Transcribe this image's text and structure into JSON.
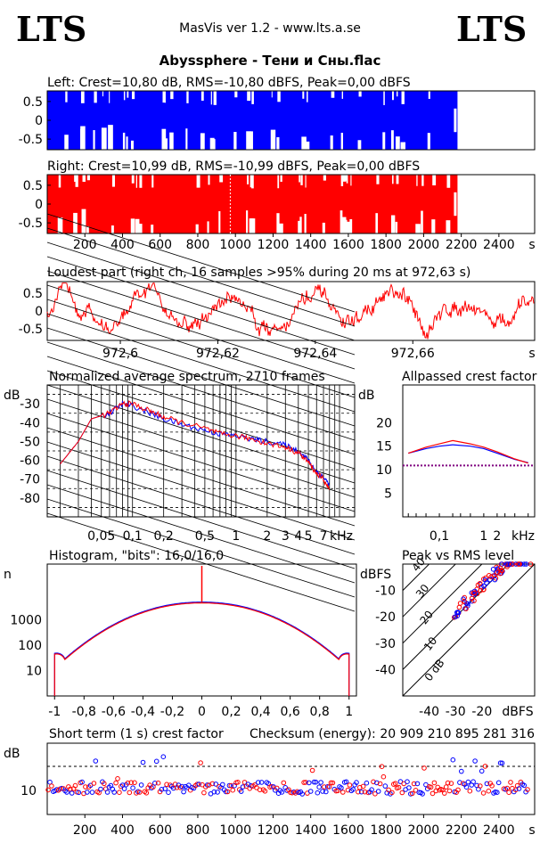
{
  "header": {
    "logo_left": "LTS",
    "logo_right": "LTS",
    "version": "MasVis ver 1.2 - www.lts.a.se",
    "file_title": "Abyssphere - Тени и Сны.flac"
  },
  "colors": {
    "left": "#0000ff",
    "right": "#ff0000",
    "grid": "#000000"
  },
  "chart_data": [
    {
      "id": "left-waveform",
      "type": "area",
      "title": "Left: Crest=10,80 dB, RMS=-10,80 dBFS, Peak=0,00 dBFS",
      "yticks": [
        "0.5",
        "0",
        "-0.5"
      ],
      "ylim": [
        -1,
        1
      ],
      "xlim": [
        0,
        2590
      ]
    },
    {
      "id": "right-waveform",
      "type": "area",
      "title": "Right: Crest=10,99 dB, RMS=-10,99 dBFS, Peak=0,00 dBFS",
      "yticks": [
        "0.5",
        "0",
        "-0.5"
      ],
      "ylim": [
        -1,
        1
      ],
      "xlim": [
        0,
        2590
      ],
      "xticks": [
        "200",
        "400",
        "600",
        "800",
        "1000",
        "1200",
        "1400",
        "1600",
        "1800",
        "2000",
        "2200",
        "2400"
      ],
      "xunit": "s",
      "marker_x": 972.63
    },
    {
      "id": "loudest-part",
      "type": "line",
      "title": "Loudest part (right ch, 16 samples >95% during 20 ms at 972,63 s)",
      "yticks": [
        "0.5",
        "0",
        "-0.5"
      ],
      "ylim": [
        -1,
        1
      ],
      "xlim": [
        972.585,
        972.685
      ],
      "xticks": [
        "972,6",
        "972,62",
        "972,64",
        "972,66"
      ],
      "xunit": "s"
    },
    {
      "id": "spectrum",
      "type": "line",
      "title": "Normalized average spectrum, 2710 frames",
      "ylabel": "dB",
      "yticks": [
        "-30",
        "-40",
        "-50",
        "-60",
        "-70",
        "-80"
      ],
      "ylim": [
        -90,
        -20
      ],
      "xticks": [
        "0,05",
        "0,1",
        "0,2",
        "0,5",
        "1",
        "2",
        "3",
        "4",
        "5",
        "7"
      ],
      "xunit": "kHz",
      "series": [
        {
          "points": [
            [
              0.02,
              -62
            ],
            [
              0.03,
              -50
            ],
            [
              0.04,
              -38
            ],
            [
              0.06,
              -35
            ],
            [
              0.08,
              -30
            ],
            [
              0.1,
              -31
            ],
            [
              0.15,
              -35
            ],
            [
              0.2,
              -38
            ],
            [
              0.3,
              -41
            ],
            [
              0.5,
              -44
            ],
            [
              0.7,
              -46
            ],
            [
              1,
              -47
            ],
            [
              1.5,
              -49
            ],
            [
              2,
              -50
            ],
            [
              3,
              -52
            ],
            [
              4,
              -55
            ],
            [
              5,
              -60
            ],
            [
              6,
              -66
            ],
            [
              7,
              -69
            ],
            [
              8,
              -73
            ]
          ]
        },
        {
          "points": [
            [
              0.02,
              -62
            ],
            [
              0.03,
              -50
            ],
            [
              0.04,
              -38
            ],
            [
              0.06,
              -35
            ],
            [
              0.08,
              -30
            ],
            [
              0.1,
              -30
            ],
            [
              0.15,
              -34
            ],
            [
              0.2,
              -37
            ],
            [
              0.3,
              -40
            ],
            [
              0.5,
              -43
            ],
            [
              0.7,
              -46
            ],
            [
              1,
              -47
            ],
            [
              1.5,
              -49
            ],
            [
              2,
              -51
            ],
            [
              3,
              -53
            ],
            [
              4,
              -56
            ],
            [
              5,
              -61
            ],
            [
              6,
              -67
            ],
            [
              7,
              -70
            ],
            [
              8,
              -76
            ]
          ]
        }
      ]
    },
    {
      "id": "allpassed-crest",
      "type": "line",
      "title": "Allpassed crest factor",
      "ylabel": "dB",
      "yticks": [
        "20",
        "15",
        "10",
        "5"
      ],
      "ylim": [
        0,
        25
      ],
      "xticks": [
        "0,1",
        "1",
        "2"
      ],
      "xunit": "kHz",
      "reference_level": 10.9,
      "series": [
        {
          "points": [
            [
              0.02,
              13.5
            ],
            [
              0.05,
              14.5
            ],
            [
              0.1,
              15
            ],
            [
              0.2,
              15.3
            ],
            [
              0.5,
              15
            ],
            [
              1,
              14.5
            ],
            [
              2,
              13.5
            ],
            [
              5,
              12.2
            ],
            [
              10,
              11.5
            ]
          ]
        },
        {
          "points": [
            [
              0.02,
              13.5
            ],
            [
              0.05,
              14.8
            ],
            [
              0.1,
              15.5
            ],
            [
              0.2,
              16.2
            ],
            [
              0.5,
              15.5
            ],
            [
              1,
              14.8
            ],
            [
              2,
              13.8
            ],
            [
              5,
              12.3
            ],
            [
              10,
              11.4
            ]
          ]
        }
      ]
    },
    {
      "id": "histogram",
      "type": "line",
      "title": "Histogram, \"bits\": 16,0/16,0",
      "ylabel": "n",
      "yticks": [
        "1000",
        "100",
        "10"
      ],
      "ylog": true,
      "xticks": [
        "-1",
        "-0,8",
        "-0,6",
        "-0,4",
        "-0,2",
        "0",
        "0,2",
        "0,4",
        "0,6",
        "0,8",
        "1"
      ],
      "xlim": [
        -1.05,
        1.05
      ]
    },
    {
      "id": "peak-vs-rms",
      "type": "scatter",
      "title": "Peak vs RMS level",
      "ylabel": "dBFS",
      "yticks": [
        "-10",
        "-20",
        "-30",
        "-40"
      ],
      "xticks": [
        "-40",
        "-30",
        "-20"
      ],
      "xunit": "dBFS",
      "diagonal_labels": [
        "40",
        "30",
        "20",
        "10",
        "0 dB"
      ],
      "xlim": [
        -50,
        0
      ],
      "ylim": [
        -50,
        0
      ]
    },
    {
      "id": "short-term-crest",
      "type": "scatter",
      "title": "Short term (1 s) crest factor",
      "checksum_label": "Checksum (energy):",
      "checksum_value": "20 909 210 895 281 316",
      "ylabel": "dB",
      "yticks": [
        "10"
      ],
      "xticks": [
        "200",
        "400",
        "600",
        "800",
        "1000",
        "1200",
        "1400",
        "1600",
        "1800",
        "2000",
        "2200",
        "2400"
      ],
      "xunit": "s",
      "xlim": [
        0,
        2590
      ]
    }
  ]
}
